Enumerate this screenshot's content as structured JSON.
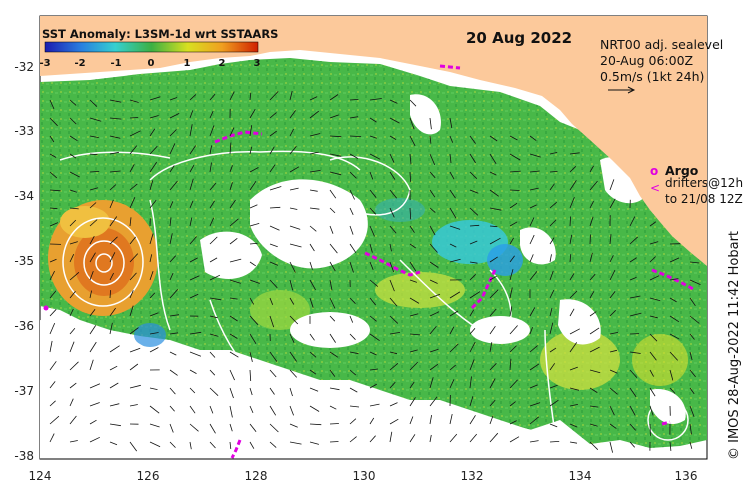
{
  "title": {
    "colorbar": "SST Anomaly: L3SM-1d wrt SSTAARS",
    "date": "20 Aug 2022"
  },
  "colorbar": {
    "ticks": [
      "-3",
      "-2",
      "-1",
      "0",
      "1",
      "2",
      "3"
    ]
  },
  "info": {
    "line1": "NRT00 adj. sealevel",
    "line2": "20-Aug 06:00Z",
    "line3": "0.5m/s (1kt 24h)"
  },
  "legend": {
    "argo_symbol": "o",
    "argo_label": "Argo",
    "drifter_symbol": "<",
    "drifter_label1": "drifters@12h",
    "drifter_label2": "to 21/08 12Z"
  },
  "credit": "© IMOS 28-Aug-2022 11:42 Hobart",
  "axes": {
    "x_ticks": [
      "124",
      "126",
      "128",
      "130",
      "132",
      "134",
      "136"
    ],
    "y_ticks": [
      "-32",
      "-33",
      "-34",
      "-35",
      "-36",
      "-37",
      "-38"
    ]
  },
  "colors": {
    "land": "#fcc99b",
    "anomaly_low": "#1b1bb0",
    "anomaly_zero": "#3cb043",
    "anomaly_high": "#d02000",
    "drifter": "#e000e0"
  }
}
